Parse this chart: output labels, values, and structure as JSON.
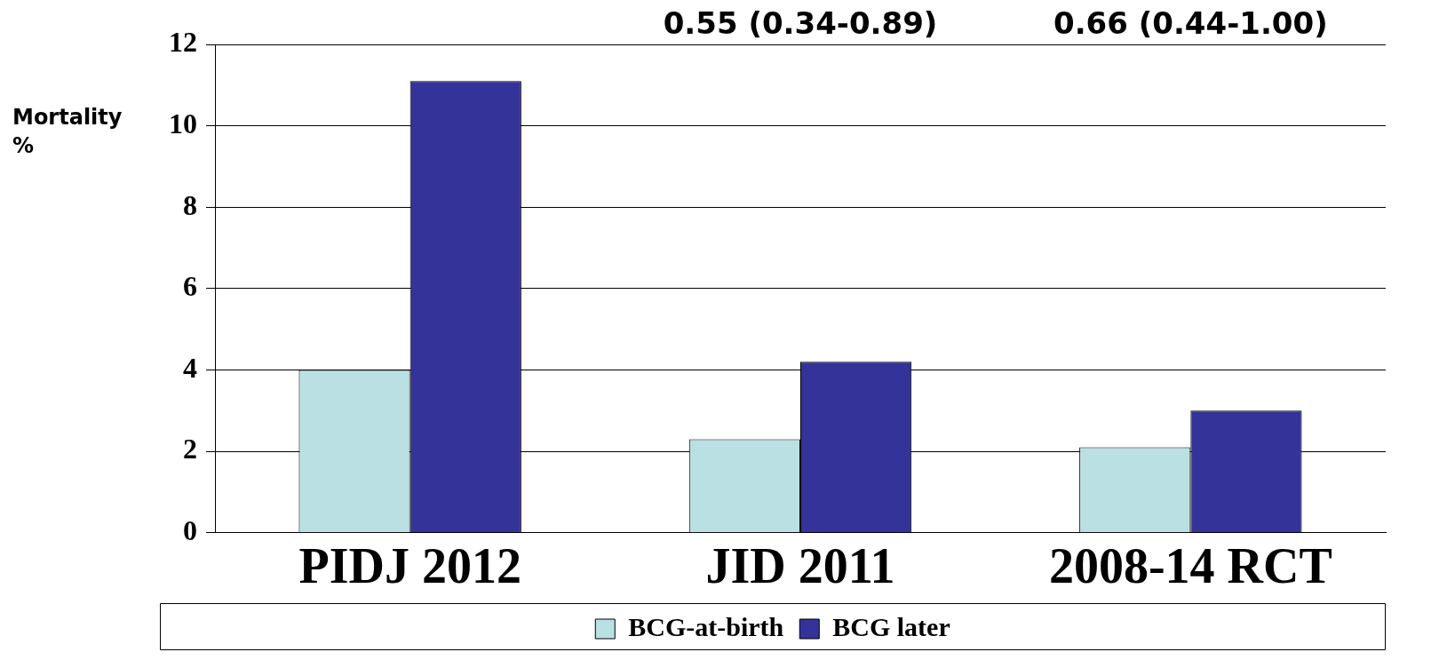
{
  "chart_data": {
    "type": "bar",
    "ylabel": "Mortality %",
    "categories": [
      "PIDJ 2012",
      "JID 2011",
      "2008-14 RCT"
    ],
    "series": [
      {
        "name": "BCG-at-birth",
        "color": "#bbe0e3",
        "values": [
          4.0,
          2.3,
          2.1
        ]
      },
      {
        "name": "BCG later",
        "color": "#333399",
        "values": [
          11.1,
          4.2,
          3.0
        ]
      }
    ],
    "annotations": [
      "0.55 (0.34-0.89)",
      "0.66 (0.44-1.00)"
    ],
    "ylim": [
      0,
      12
    ],
    "yticks": [
      0,
      2,
      4,
      6,
      8,
      10,
      12
    ],
    "grid": "y",
    "legend": "bottom"
  }
}
